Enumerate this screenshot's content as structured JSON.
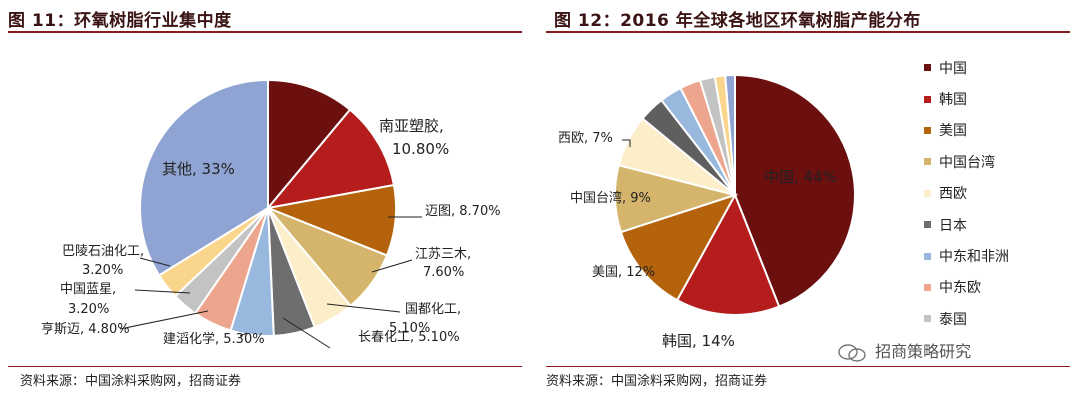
{
  "figures": [
    {
      "title": "图 11：环氧树脂行业集中度",
      "source": "资料来源：中国涂料采购网，招商证券"
    },
    {
      "title": "图 12：2016 年全球各地区环氧树脂产能分布",
      "source": "资料来源：中国涂料采购网，招商证券"
    }
  ],
  "watermark": "招商策略研究",
  "chart_data": [
    {
      "type": "pie",
      "title": "图 11：环氧树脂行业集中度",
      "slices": [
        {
          "label": "南亚塑胶, 10.80%",
          "value": 10.8,
          "color": "#6b0f0f"
        },
        {
          "label": "",
          "value": 10.8,
          "color": "#b51d1d"
        },
        {
          "label": "迈图, 8.70%",
          "value": 8.7,
          "color": "#b4620b"
        },
        {
          "label": "江苏三木, 7.60%",
          "value": 7.6,
          "color": "#d5b56c"
        },
        {
          "label": "国都化工, 5.10%",
          "value": 5.1,
          "color": "#fbeec8"
        },
        {
          "label": "长春化工, 5.10%",
          "value": 5.1,
          "color": "#6e6e6e"
        },
        {
          "label": "建滔化学, 5.30%",
          "value": 5.3,
          "color": "#99b8de"
        },
        {
          "label": "亨斯迈, 4.80%",
          "value": 4.8,
          "color": "#eea58e"
        },
        {
          "label": "中国蓝星, 3.20%",
          "value": 3.2,
          "color": "#c3c3c3"
        },
        {
          "label": "巴陵石油化工, 3.20%",
          "value": 3.2,
          "color": "#fad58c"
        },
        {
          "label": "其他, 33%",
          "value": 33,
          "color": "#8fa4d3"
        }
      ]
    },
    {
      "type": "pie",
      "title": "图 12：2016 年全球各地区环氧树脂产能分布",
      "slices": [
        {
          "label": "中国, 44%",
          "value": 44,
          "color": "#6b0f0f"
        },
        {
          "label": "韩国, 14%",
          "value": 14,
          "color": "#b51d1d"
        },
        {
          "label": "美国, 12%",
          "value": 12,
          "color": "#b4620b"
        },
        {
          "label": "中国台湾, 9%",
          "value": 9,
          "color": "#d5b56c"
        },
        {
          "label": "西欧, 7%",
          "value": 7,
          "color": "#fbeec8"
        },
        {
          "label": "",
          "value": 3.5,
          "color": "#5f5f5f"
        },
        {
          "label": "",
          "value": 3,
          "color": "#99b8de"
        },
        {
          "label": "",
          "value": 2.8,
          "color": "#eea58e"
        },
        {
          "label": "",
          "value": 2,
          "color": "#c3c3c3"
        },
        {
          "label": "",
          "value": 1.4,
          "color": "#fad58c"
        },
        {
          "label": "",
          "value": 1.3,
          "color": "#8fa4d3"
        }
      ],
      "legend": [
        {
          "name": "中国",
          "color": "#6b0f0f"
        },
        {
          "name": "韩国",
          "color": "#b51d1d"
        },
        {
          "name": "美国",
          "color": "#b4620b"
        },
        {
          "name": "中国台湾",
          "color": "#d5b56c"
        },
        {
          "name": "西欧",
          "color": "#fbeec8"
        },
        {
          "name": "日本",
          "color": "#6e6e6e"
        },
        {
          "name": "中东和非洲",
          "color": "#99b8de"
        },
        {
          "name": "中东欧",
          "color": "#eea58e"
        },
        {
          "name": "泰国",
          "color": "#c3c3c3"
        }
      ],
      "legend_position": "right"
    }
  ]
}
